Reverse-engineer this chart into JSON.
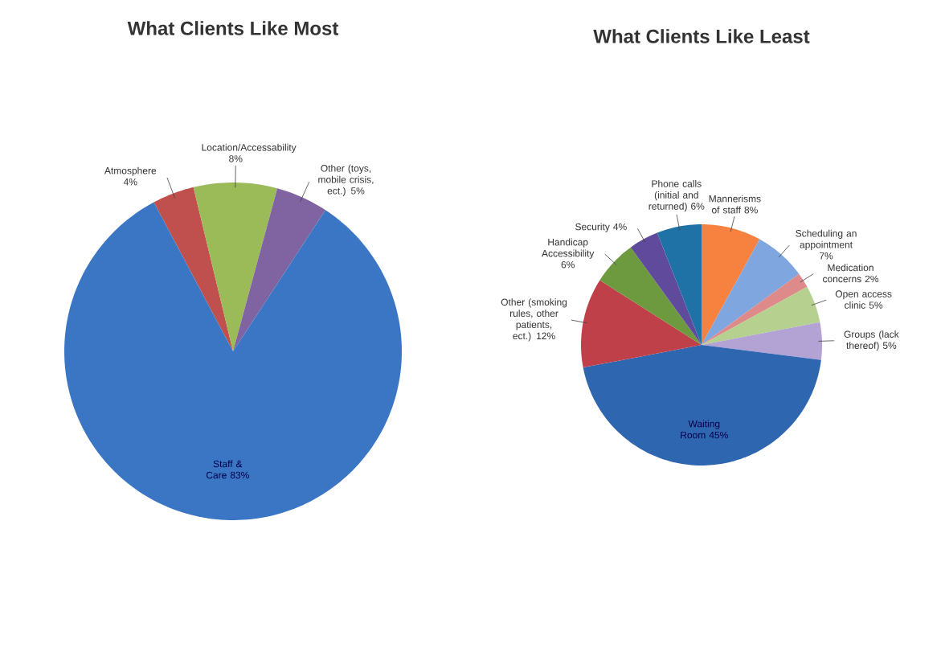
{
  "chart_data": [
    {
      "type": "pie",
      "title": "What Clients Like Most",
      "categories": [
        "Atmosphere",
        "Location/Accessability",
        "Other (toys, mobile crisis, ect.)",
        "Staff & Care"
      ],
      "values": [
        4,
        8,
        5,
        83
      ],
      "value_labels": [
        "4%",
        "8%",
        "5%",
        "83%"
      ],
      "colors": [
        "#c0504d",
        "#9bbb59",
        "#8064a2",
        "#3a76c4"
      ]
    },
    {
      "type": "pie",
      "title": "What Clients Like Least",
      "categories": [
        "Mannerisms of staff",
        "Scheduling an appointment",
        "Medication concerns",
        "Open access clinic",
        "Groups (lack thereof)",
        "Waiting Room",
        "Other (smoking rules, other patients, ect.)",
        "Handicap Accessibility",
        "Security",
        "Phone calls (initial and returned)"
      ],
      "values": [
        8,
        7,
        2,
        5,
        5,
        45,
        12,
        6,
        4,
        6
      ],
      "value_labels": [
        "8%",
        "7%",
        "2%",
        "5%",
        "5%",
        "45%",
        "12%",
        "6%",
        "4%",
        "6%"
      ],
      "colors": [
        "#f7813f",
        "#7fa6de",
        "#de8a8a",
        "#b5d08f",
        "#b3a2d4",
        "#2f66b0",
        "#c0404a",
        "#6e9a3f",
        "#5f4a9b",
        "#1f72a6"
      ]
    }
  ]
}
